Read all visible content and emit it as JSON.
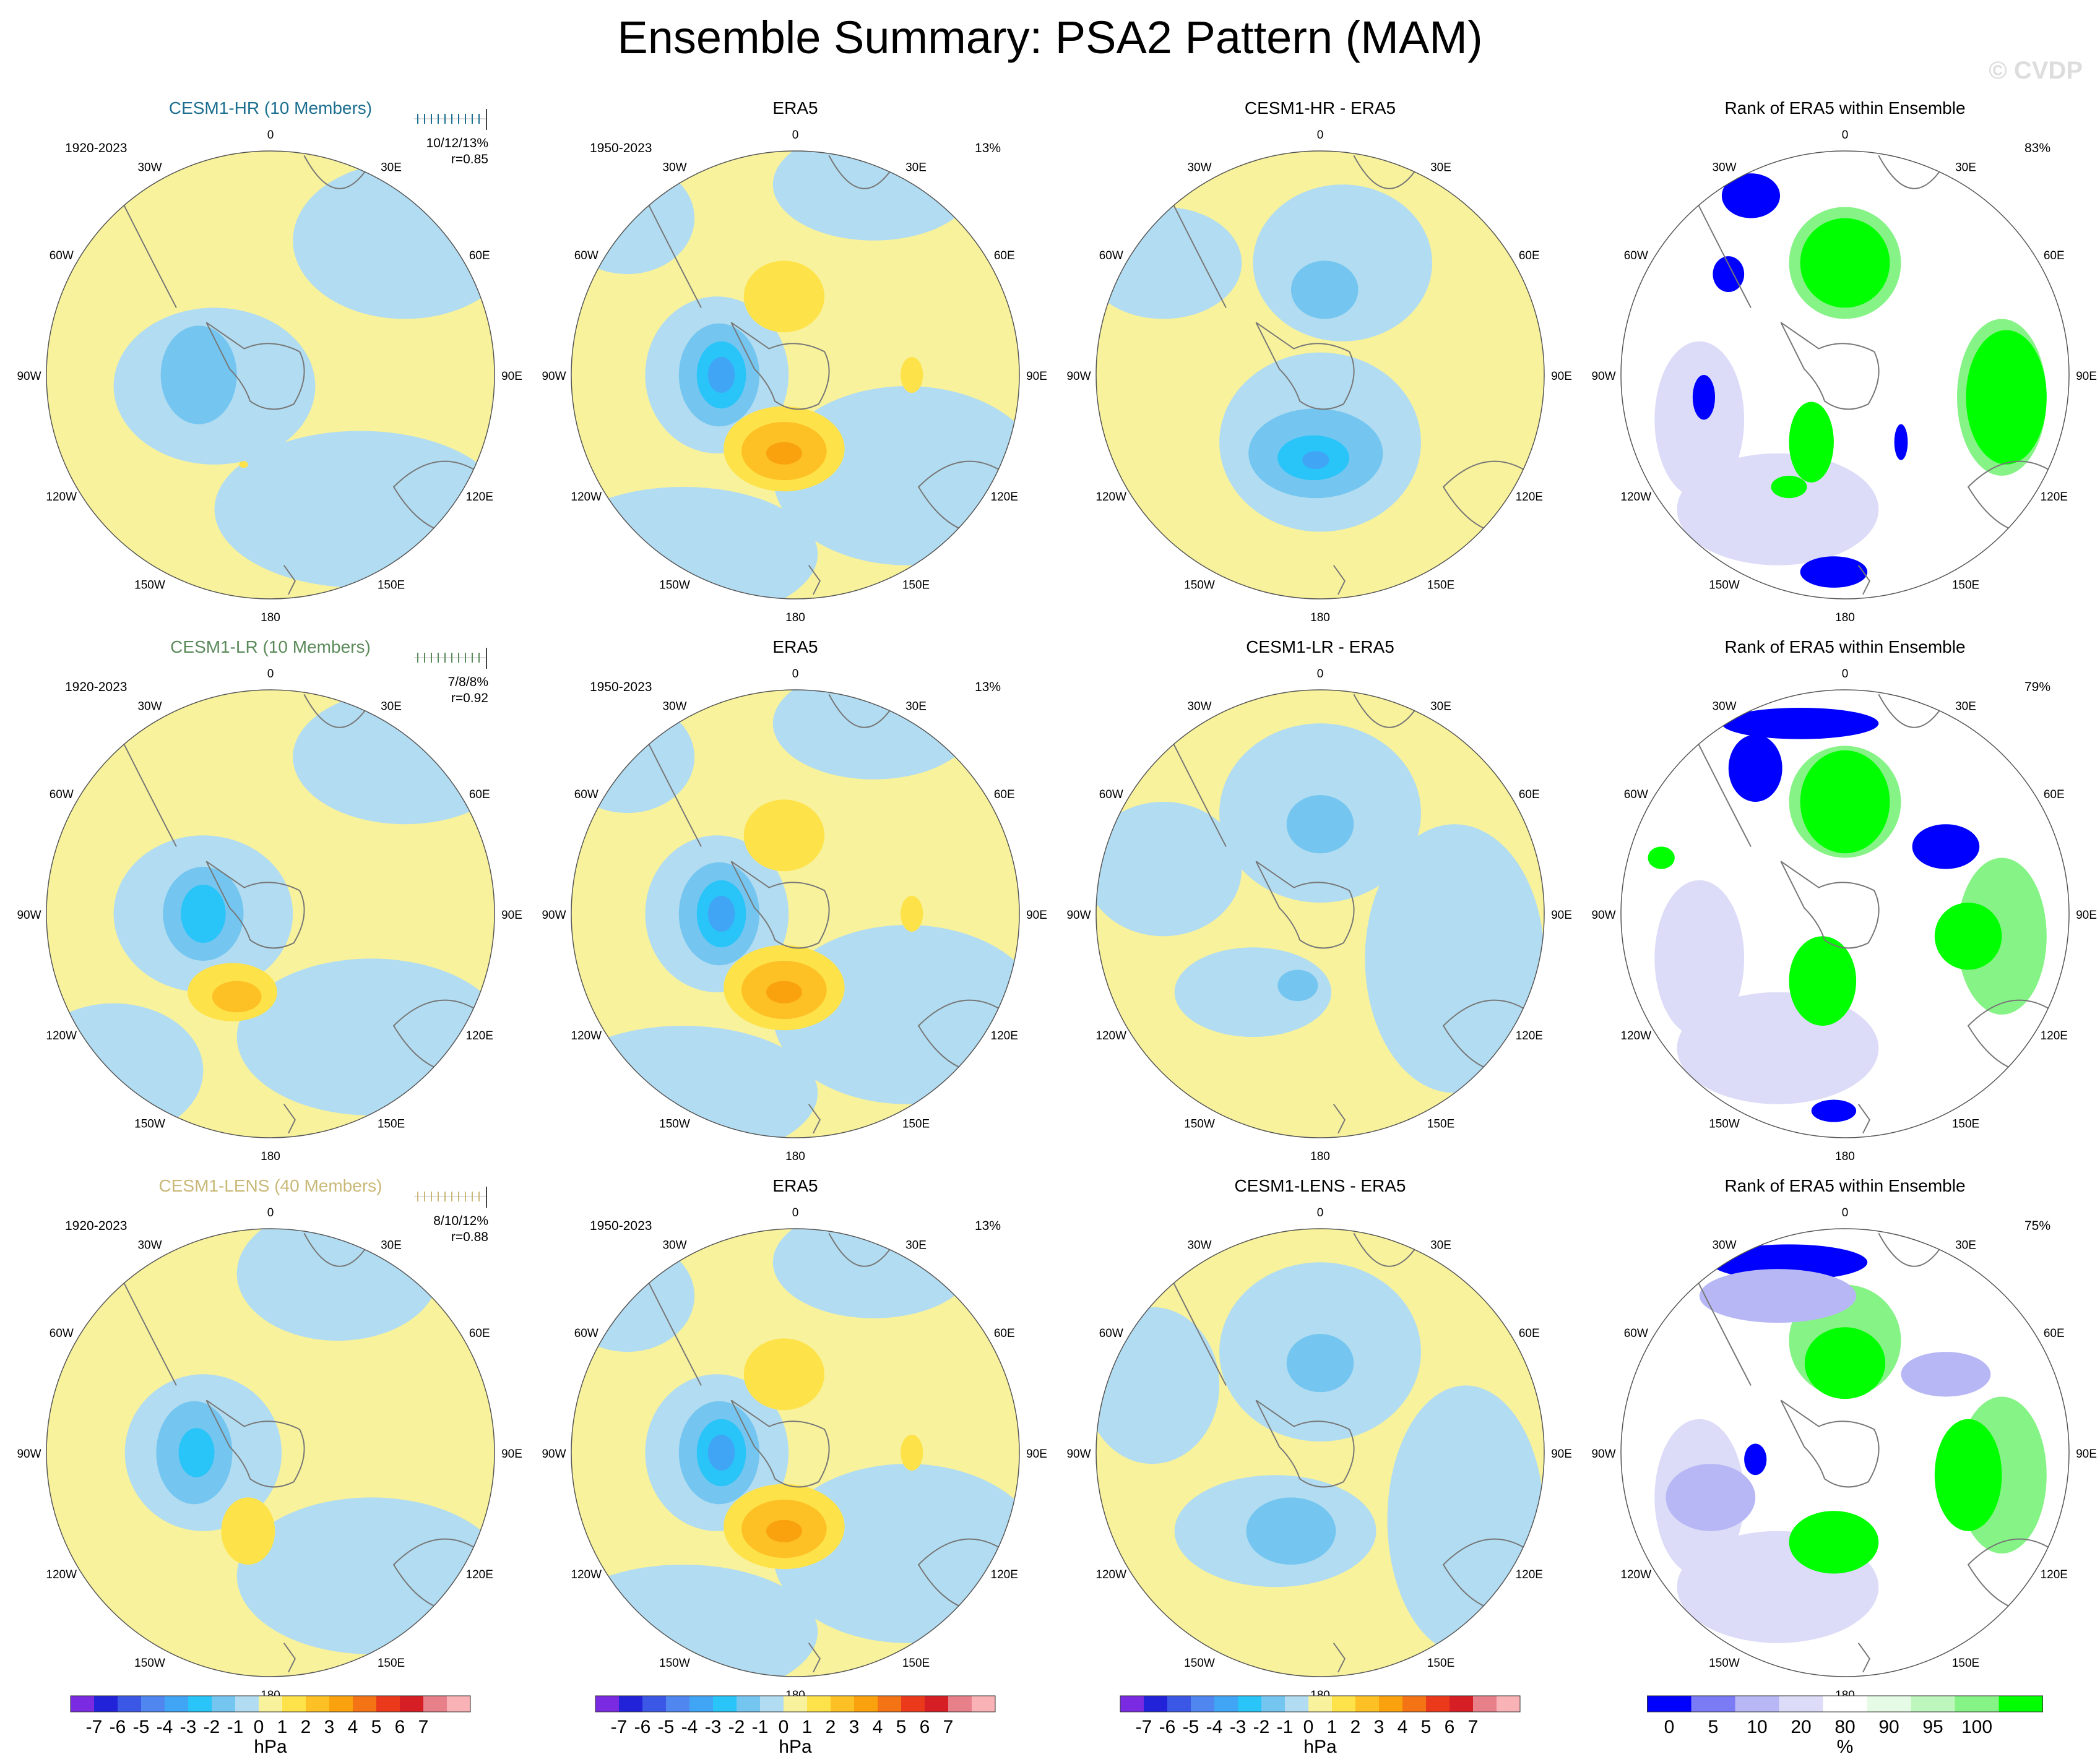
{
  "title": "Ensemble Summary: PSA2 Pattern (MAM)",
  "watermark": "© CVDP",
  "colors": {
    "hpa_palette": [
      "#7a2be2",
      "#2222d8",
      "#3b57e6",
      "#4f86ef",
      "#41a5f5",
      "#29c4f8",
      "#74c6f0",
      "#b2dcf1",
      "#f8f29c",
      "#fde24a",
      "#fdc025",
      "#f9a20e",
      "#f47314",
      "#ea3a1b",
      "#d51f24",
      "#e8808a",
      "#f9b3b6"
    ],
    "rank_palette": [
      "#0000ff",
      "#7b7bf6",
      "#b7b7f5",
      "#dcdcf8",
      "#ffffff",
      "#e6fbe6",
      "#bdf7bd",
      "#86f386",
      "#00ff00"
    ],
    "model_hr": "#1b6e8f",
    "model_lr": "#5a8a5a",
    "model_lens": "#c9b877",
    "land_outline": "#777777"
  },
  "longitude_labels": [
    "0",
    "30E",
    "60E",
    "90E",
    "120E",
    "150E",
    "180",
    "150W",
    "120W",
    "90W",
    "60W",
    "30W"
  ],
  "rows": [
    {
      "model_title": "CESM1-HR (10 Members)",
      "model_color_key": "model_hr",
      "model_period": "1920-2023",
      "model_stats": "10/12/13%",
      "model_r": "r=0.85",
      "obs_title": "ERA5",
      "obs_period": "1950-2023",
      "obs_pct": "13%",
      "diff_title": "CESM1-HR - ERA5",
      "rank_title": "Rank of ERA5 within Ensemble",
      "rank_pct": "83%"
    },
    {
      "model_title": "CESM1-LR (10 Members)",
      "model_color_key": "model_lr",
      "model_period": "1920-2023",
      "model_stats": "7/8/8%",
      "model_r": "r=0.92",
      "obs_title": "ERA5",
      "obs_period": "1950-2023",
      "obs_pct": "13%",
      "diff_title": "CESM1-LR - ERA5",
      "rank_title": "Rank of ERA5 within Ensemble",
      "rank_pct": "79%"
    },
    {
      "model_title": "CESM1-LENS (40 Members)",
      "model_color_key": "model_lens",
      "model_period": "1920-2023",
      "model_stats": "8/10/12%",
      "model_r": "r=0.88",
      "obs_title": "ERA5",
      "obs_period": "1950-2023",
      "obs_pct": "13%",
      "diff_title": "CESM1-LENS - ERA5",
      "rank_title": "Rank of ERA5 within Ensemble",
      "rank_pct": "75%"
    }
  ],
  "colorbars": [
    {
      "labels": [
        "-7",
        "-6",
        "-5",
        "-4",
        "-3",
        "-2",
        "-1",
        "0",
        "1",
        "2",
        "3",
        "4",
        "5",
        "6",
        "7"
      ],
      "unit": "hPa"
    },
    {
      "labels": [
        "-7",
        "-6",
        "-5",
        "-4",
        "-3",
        "-2",
        "-1",
        "0",
        "1",
        "2",
        "3",
        "4",
        "5",
        "6",
        "7"
      ],
      "unit": "hPa"
    },
    {
      "labels": [
        "-7",
        "-6",
        "-5",
        "-4",
        "-3",
        "-2",
        "-1",
        "0",
        "1",
        "2",
        "3",
        "4",
        "5",
        "6",
        "7"
      ],
      "unit": "hPa"
    },
    {
      "labels": [
        "0",
        "5",
        "10",
        "20",
        "80",
        "90",
        "95",
        "100"
      ],
      "unit": "%"
    }
  ],
  "chart_data": [
    {
      "type": "heatmap",
      "projection": "south polar stereographic",
      "variable": "PSA2 pattern (MAM)",
      "units": "hPa",
      "field": "CESM1-HR ensemble mean",
      "period": "1920-2023",
      "stats": "10/12/13%",
      "pattern_correlation": 0.85,
      "contour_levels": [
        -7,
        -6,
        -5,
        -4,
        -3,
        -2,
        -1,
        0,
        1,
        2,
        3,
        4,
        5,
        6,
        7
      ],
      "features": [
        {
          "sign": "negative",
          "center_lon": "90W",
          "min_hPa": -3
        },
        {
          "sign": "positive",
          "center_lon": "160W",
          "max_hPa": 1
        }
      ]
    },
    {
      "type": "heatmap",
      "projection": "south polar stereographic",
      "variable": "PSA2 pattern (MAM)",
      "units": "hPa",
      "field": "ERA5",
      "period": "1950-2023",
      "pct_variance": 13,
      "features": [
        {
          "sign": "negative",
          "center_lon": "80W",
          "min_hPa": -4
        },
        {
          "sign": "positive",
          "center_lon": "160W",
          "max_hPa": 4
        },
        {
          "sign": "positive",
          "center_lon": "10E",
          "max_hPa": 2
        },
        {
          "sign": "positive",
          "center_lon": "90E",
          "max_hPa": 2
        }
      ]
    },
    {
      "type": "heatmap",
      "projection": "south polar stereographic",
      "field": "CESM1-HR - ERA5",
      "units": "hPa",
      "features": [
        {
          "sign": "negative",
          "center_lon": "160W",
          "min_hPa": -4
        },
        {
          "sign": "negative",
          "center_lon": "10E",
          "min_hPa": -2
        }
      ]
    },
    {
      "type": "heatmap",
      "projection": "south polar stereographic",
      "field": "Rank of ERA5 within CESM1-HR ensemble",
      "units": "%",
      "pct_area": 83,
      "bins": [
        0,
        5,
        10,
        20,
        80,
        90,
        95,
        100
      ]
    },
    {
      "type": "heatmap",
      "projection": "south polar stereographic",
      "field": "CESM1-LR ensemble mean",
      "period": "1920-2023",
      "stats": "7/8/8%",
      "pattern_correlation": 0.92,
      "features": [
        {
          "sign": "negative",
          "center_lon": "80W",
          "min_hPa": -4
        },
        {
          "sign": "positive",
          "center_lon": "150W",
          "max_hPa": 3
        }
      ]
    },
    {
      "type": "heatmap",
      "projection": "south polar stereographic",
      "field": "ERA5",
      "period": "1950-2023",
      "pct_variance": 13
    },
    {
      "type": "heatmap",
      "projection": "south polar stereographic",
      "field": "CESM1-LR - ERA5",
      "units": "hPa",
      "features": [
        {
          "sign": "negative",
          "center_lon": "10E",
          "min_hPa": -2
        },
        {
          "sign": "negative",
          "center_lon": "170W",
          "min_hPa": -2
        }
      ]
    },
    {
      "type": "heatmap",
      "projection": "south polar stereographic",
      "field": "Rank of ERA5 within CESM1-LR ensemble",
      "units": "%",
      "pct_area": 79,
      "bins": [
        0,
        5,
        10,
        20,
        80,
        90,
        95,
        100
      ]
    },
    {
      "type": "heatmap",
      "projection": "south polar stereographic",
      "field": "CESM1-LENS ensemble mean",
      "period": "1920-2023",
      "stats": "8/10/12%",
      "pattern_correlation": 0.88,
      "features": [
        {
          "sign": "negative",
          "center_lon": "80W",
          "min_hPa": -3
        },
        {
          "sign": "positive",
          "center_lon": "150W",
          "max_hPa": 2
        }
      ]
    },
    {
      "type": "heatmap",
      "projection": "south polar stereographic",
      "field": "ERA5",
      "period": "1950-2023",
      "pct_variance": 13
    },
    {
      "type": "heatmap",
      "projection": "south polar stereographic",
      "field": "CESM1-LENS - ERA5",
      "units": "hPa",
      "features": [
        {
          "sign": "negative",
          "center_lon": "10E",
          "min_hPa": -2
        },
        {
          "sign": "negative",
          "center_lon": "160W",
          "min_hPa": -2
        }
      ]
    },
    {
      "type": "heatmap",
      "projection": "south polar stereographic",
      "field": "Rank of ERA5 within CESM1-LENS ensemble",
      "units": "%",
      "pct_area": 75,
      "bins": [
        0,
        5,
        10,
        20,
        80,
        90,
        95,
        100
      ]
    }
  ]
}
